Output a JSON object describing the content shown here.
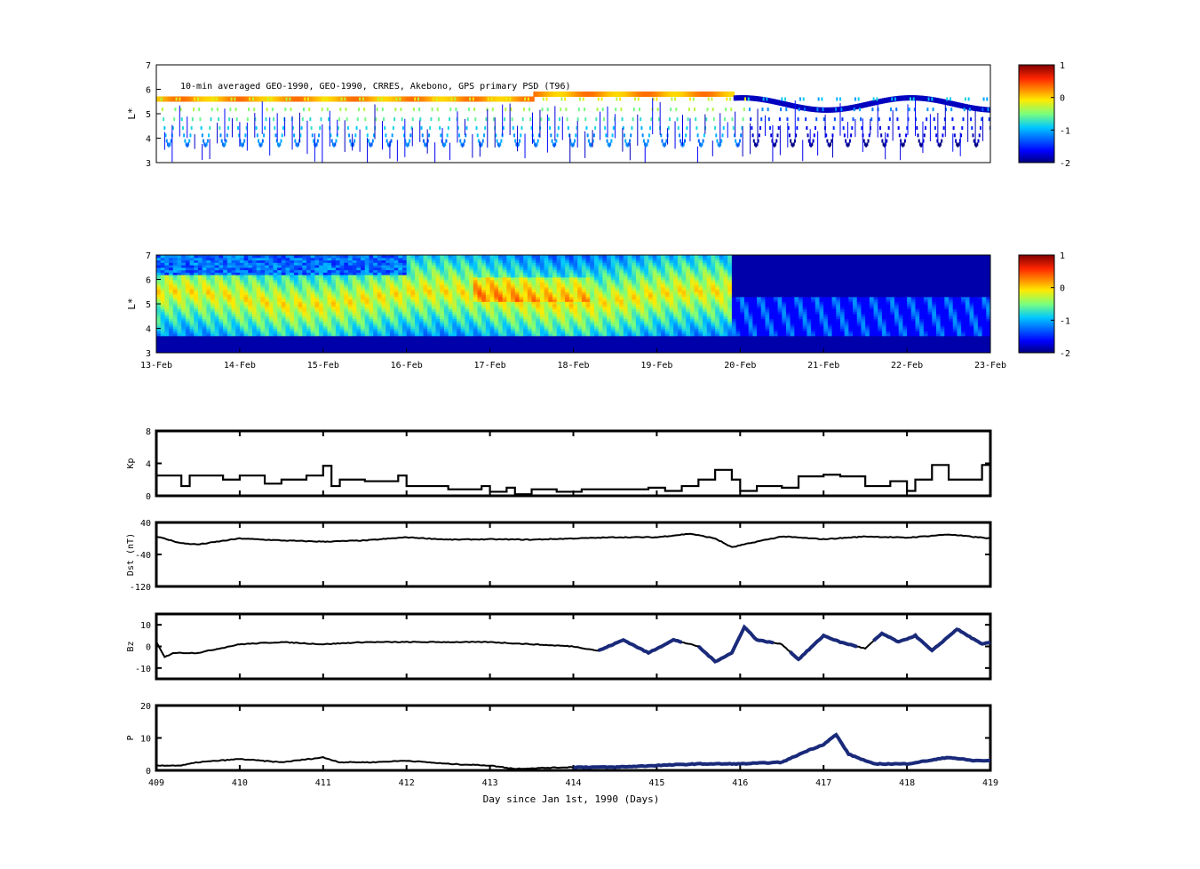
{
  "chart_data": [
    {
      "type": "heatmap",
      "title": "10-min averaged GEO-1990, GEO-1990, CRRES, Akebono, GPS  primary PSD (T96)",
      "ylabel": "L*",
      "ylim": [
        3,
        7
      ],
      "yticks": [
        "3",
        "4",
        "5",
        "6",
        "7"
      ],
      "colorbar_ticks": [
        "1",
        "0",
        "-1",
        "-2"
      ],
      "colorbar_range": [
        -2,
        1
      ],
      "sparse": true,
      "x_range_days": [
        409,
        419
      ],
      "colormap": [
        "#00007f",
        "#0000ff",
        "#00a0ff",
        "#40ffc0",
        "#c0ff40",
        "#ffb000",
        "#ff3000",
        "#7f0000"
      ]
    },
    {
      "type": "heatmap",
      "ylabel": "L*",
      "ylim": [
        3,
        7
      ],
      "yticks": [
        "3",
        "4",
        "5",
        "6",
        "7"
      ],
      "xticks": [
        "13-Feb",
        "14-Feb",
        "15-Feb",
        "16-Feb",
        "17-Feb",
        "18-Feb",
        "19-Feb",
        "20-Feb",
        "21-Feb",
        "22-Feb",
        "23-Feb"
      ],
      "colorbar_ticks": [
        "1",
        "0",
        "-1",
        "-2"
      ],
      "colorbar_range": [
        -2,
        1
      ],
      "sparse": false,
      "x_range_days": [
        409,
        419
      ]
    },
    {
      "type": "line",
      "ylabel": "Kp",
      "ylim": [
        0,
        8
      ],
      "yticks": [
        "0",
        "4",
        "8"
      ],
      "x": [
        409,
        409.2,
        409.3,
        409.4,
        409.8,
        410.0,
        410.3,
        410.5,
        410.8,
        411.0,
        411.1,
        411.2,
        411.5,
        411.9,
        412.0,
        412.1,
        412.5,
        412.9,
        413.0,
        413.2,
        413.3,
        413.5,
        413.8,
        414.1,
        414.5,
        414.9,
        415.1,
        415.3,
        415.5,
        415.7,
        415.9,
        416.0,
        416.2,
        416.5,
        416.7,
        417.0,
        417.2,
        417.5,
        417.8,
        418.0,
        418.1,
        418.3,
        418.5,
        418.8,
        418.9,
        419
      ],
      "values": [
        2.5,
        2.5,
        1.2,
        2.5,
        2.0,
        2.5,
        1.5,
        2.0,
        2.5,
        3.7,
        1.2,
        2.0,
        1.8,
        2.5,
        1.2,
        1.2,
        0.8,
        1.2,
        0.5,
        1.0,
        0.2,
        0.8,
        0.5,
        0.8,
        0.8,
        1.0,
        0.6,
        1.2,
        2.0,
        3.2,
        2.0,
        0.6,
        1.2,
        1.0,
        2.4,
        2.6,
        2.4,
        1.2,
        1.8,
        0.6,
        2.0,
        3.8,
        2.0,
        2.0,
        3.8,
        4.0
      ],
      "color": "#000000"
    },
    {
      "type": "line",
      "ylabel": "Dst (nT)",
      "ylim": [
        -120,
        40
      ],
      "yticks": [
        "-120",
        "-40",
        "40"
      ],
      "x": [
        409,
        409.3,
        409.5,
        410,
        410.5,
        411,
        411.5,
        412,
        412.5,
        413,
        413.5,
        414,
        414.5,
        415,
        415.4,
        415.7,
        415.9,
        416.2,
        416.5,
        417,
        417.5,
        418,
        418.5,
        419
      ],
      "values": [
        5,
        -12,
        -15,
        0,
        -5,
        -8,
        -5,
        3,
        -3,
        -2,
        -3,
        0,
        3,
        3,
        12,
        0,
        -22,
        -8,
        5,
        -2,
        5,
        2,
        10,
        0
      ],
      "color": "#000000"
    },
    {
      "type": "line",
      "ylabel": "Bz",
      "ylim": [
        -15,
        15
      ],
      "yticks": [
        "-10",
        "0",
        "10"
      ],
      "x": [
        409,
        409.1,
        409.2,
        409.5,
        410,
        410.5,
        411,
        411.5,
        412,
        412.5,
        413,
        413.5,
        414,
        414.3,
        414.6,
        414.9,
        415.2,
        415.5,
        415.7,
        415.9,
        416.05,
        416.2,
        416.5,
        416.7,
        417.0,
        417.2,
        417.5,
        417.7,
        417.9,
        418.1,
        418.3,
        418.6,
        418.9,
        419
      ],
      "values": [
        2,
        -5,
        -3,
        -3,
        1,
        2,
        1,
        2,
        2,
        2,
        2,
        1,
        0,
        -2,
        3,
        -3,
        3,
        0,
        -7,
        -3,
        9,
        3,
        1,
        -6,
        5,
        2,
        -1,
        6,
        2,
        5,
        -2,
        8,
        1,
        2
      ],
      "color": "#000000",
      "highlight_color": "#1a2a7a",
      "highlight_ranges": [
        [
          414.3,
          415.3
        ],
        [
          415.5,
          416.4
        ],
        [
          416.6,
          417.4
        ],
        [
          417.6,
          419
        ]
      ]
    },
    {
      "type": "line",
      "ylabel": "P",
      "ylim": [
        0,
        20
      ],
      "yticks": [
        "0",
        "10",
        "20"
      ],
      "xlabel": "Day since Jan 1st, 1990 (Days)",
      "xticks": [
        "409",
        "410",
        "411",
        "412",
        "413",
        "414",
        "415",
        "416",
        "417",
        "418",
        "419"
      ],
      "x": [
        409,
        409.3,
        409.5,
        410,
        410.5,
        411,
        411.2,
        411.6,
        412,
        412.5,
        413,
        413.3,
        413.7,
        414,
        414.5,
        415,
        415.5,
        416,
        416.5,
        416.8,
        417.0,
        417.15,
        417.3,
        417.6,
        418,
        418.5,
        418.8,
        419
      ],
      "values": [
        1.5,
        1.5,
        2.5,
        3.5,
        2.5,
        4,
        2.5,
        2.5,
        3,
        2,
        1.5,
        0.5,
        0.8,
        1,
        1,
        1.5,
        2,
        2,
        2.5,
        6,
        8,
        11,
        5,
        2,
        2,
        4,
        3,
        3
      ],
      "color": "#000000",
      "highlight_color": "#1a2a7a",
      "highlight_ranges": [
        [
          414,
          416.5
        ],
        [
          416.5,
          419
        ]
      ]
    }
  ]
}
